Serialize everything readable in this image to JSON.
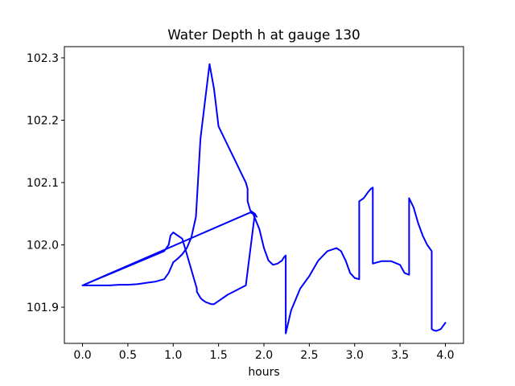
{
  "chart_data": {
    "type": "line",
    "title": "Water Depth h at gauge 130",
    "xlabel": "hours",
    "ylabel": "",
    "xlim": [
      -0.2,
      4.2
    ],
    "ylim": [
      101.842,
      102.318
    ],
    "xticks": [
      0.0,
      0.5,
      1.0,
      1.5,
      2.0,
      2.5,
      3.0,
      3.5,
      4.0
    ],
    "xtick_labels": [
      "0.0",
      "0.5",
      "1.0",
      "1.5",
      "2.0",
      "2.5",
      "3.0",
      "3.5",
      "4.0"
    ],
    "yticks": [
      101.9,
      102.0,
      102.1,
      102.2,
      102.3
    ],
    "ytick_labels": [
      "101.9",
      "102.0",
      "102.1",
      "102.2",
      "102.3"
    ],
    "grid": false,
    "series": [
      {
        "name": "",
        "color": "#0000ff",
        "x": [
          0.0,
          0.1,
          0.2,
          0.3,
          0.4,
          0.5,
          0.6,
          0.65,
          0.7,
          0.75,
          0.8,
          0.85,
          0.9,
          0.95,
          1.0,
          1.05,
          1.1,
          1.15,
          1.2,
          1.25,
          1.3,
          1.35,
          1.4,
          1.45,
          1.5,
          1.55,
          1.6,
          1.65,
          1.7,
          1.75,
          1.8,
          1.82,
          1.82,
          1.85,
          1.9,
          1.92,
          1.9,
          1.8,
          1.6,
          1.5,
          1.45,
          1.42,
          1.4,
          1.38,
          1.36,
          1.34,
          1.32,
          1.3,
          1.26,
          1.26,
          1.2,
          1.15,
          1.1,
          1.0,
          0.97,
          0.95,
          0.9,
          0.0,
          1.85,
          1.88,
          1.95,
          2.0,
          2.05,
          2.1,
          2.15,
          2.2,
          2.22,
          2.24,
          2.24,
          2.3,
          2.4,
          2.5,
          2.6,
          2.7,
          2.8,
          2.85,
          2.9,
          2.95,
          3.0,
          3.05,
          3.05,
          3.1,
          3.15,
          3.18,
          3.2,
          3.2,
          3.25,
          3.3,
          3.4,
          3.5,
          3.55,
          3.6,
          3.6,
          3.65,
          3.7,
          3.75,
          3.8,
          3.85,
          3.85,
          3.87,
          3.9,
          3.95,
          4.0
        ],
        "y": [
          101.935,
          101.935,
          101.935,
          101.935,
          101.936,
          101.936,
          101.937,
          101.938,
          101.939,
          101.94,
          101.941,
          101.943,
          101.945,
          101.955,
          101.972,
          101.978,
          101.985,
          101.995,
          102.012,
          102.045,
          102.17,
          102.23,
          102.29,
          102.25,
          102.19,
          102.175,
          102.16,
          102.145,
          102.13,
          102.115,
          102.1,
          102.09,
          102.07,
          102.055,
          102.05,
          102.045,
          102.05,
          101.935,
          101.92,
          101.91,
          101.905,
          101.905,
          101.906,
          101.907,
          101.908,
          101.91,
          101.912,
          101.915,
          101.925,
          101.93,
          101.96,
          101.985,
          102.01,
          102.02,
          102.015,
          102.0,
          101.99,
          101.935,
          102.052,
          102.05,
          102.025,
          101.995,
          101.975,
          101.968,
          101.97,
          101.975,
          101.98,
          101.983,
          101.858,
          101.895,
          101.93,
          101.95,
          101.975,
          101.99,
          101.995,
          101.99,
          101.975,
          101.955,
          101.947,
          101.945,
          102.07,
          102.075,
          102.085,
          102.09,
          102.092,
          101.97,
          101.972,
          101.974,
          101.974,
          101.968,
          101.955,
          101.952,
          102.075,
          102.06,
          102.035,
          102.015,
          102.0,
          101.99,
          101.865,
          101.863,
          101.862,
          101.865,
          101.875
        ]
      }
    ]
  }
}
